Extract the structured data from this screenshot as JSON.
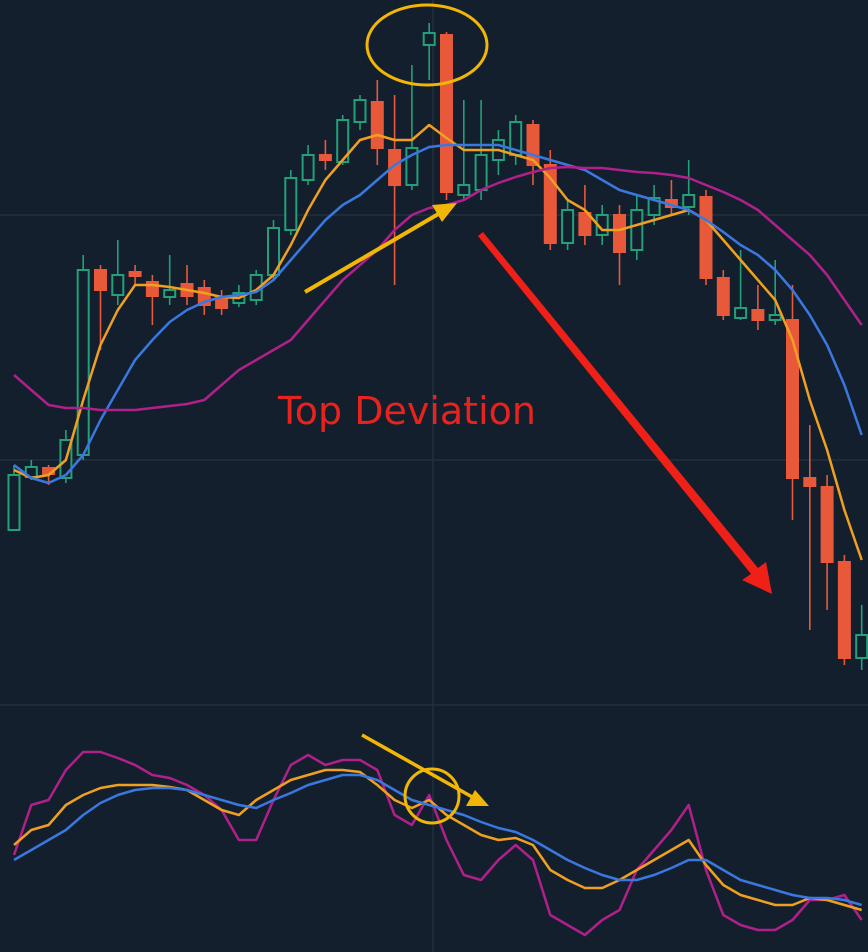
{
  "chart_data": [
    {
      "type": "candlestick",
      "annotation": "Top Deviation",
      "up_color": "#23a07a",
      "down_color": "#e8593a",
      "ylim": [
        0,
        700
      ],
      "open": [
        175,
        228,
        237,
        227,
        250,
        435,
        410,
        433,
        423,
        408,
        421,
        417,
        408,
        402,
        405,
        430,
        475,
        525,
        550,
        543,
        583,
        603,
        555,
        520,
        660,
        670,
        510,
        515,
        545,
        550,
        580,
        540,
        462,
        492,
        470,
        490,
        455,
        490,
        505,
        498,
        508,
        427,
        387,
        395,
        385,
        385,
        227,
        218,
        143,
        47
      ],
      "high": [
        240,
        245,
        240,
        275,
        450,
        440,
        465,
        440,
        430,
        450,
        440,
        425,
        415,
        420,
        435,
        485,
        535,
        560,
        565,
        590,
        610,
        625,
        610,
        640,
        682,
        673,
        605,
        605,
        575,
        590,
        585,
        555,
        505,
        520,
        500,
        500,
        510,
        520,
        525,
        545,
        515,
        435,
        455,
        420,
        445,
        420,
        280,
        230,
        150,
        100
      ],
      "low": [
        175,
        225,
        220,
        222,
        245,
        355,
        400,
        420,
        380,
        400,
        400,
        390,
        390,
        398,
        400,
        425,
        470,
        520,
        535,
        540,
        575,
        540,
        420,
        515,
        625,
        505,
        505,
        505,
        530,
        540,
        520,
        455,
        455,
        460,
        460,
        420,
        445,
        480,
        490,
        490,
        420,
        385,
        385,
        375,
        380,
        185,
        75,
        95,
        40,
        35
      ],
      "close": [
        230,
        238,
        231,
        265,
        435,
        415,
        430,
        429,
        409,
        415,
        409,
        400,
        397,
        412,
        430,
        477,
        527,
        550,
        545,
        585,
        605,
        557,
        520,
        557,
        672,
        513,
        520,
        550,
        565,
        583,
        540,
        462,
        495,
        470,
        490,
        453,
        495,
        507,
        498,
        510,
        427,
        390,
        397,
        385,
        390,
        227,
        219,
        143,
        47,
        70
      ],
      "series": [
        {
          "color": "#f0a020",
          "values": [
            235,
            227,
            230,
            245,
            305,
            360,
            395,
            420,
            420,
            418,
            415,
            412,
            408,
            407,
            415,
            430,
            460,
            495,
            525,
            545,
            565,
            570,
            565,
            565,
            580,
            567,
            555,
            555,
            555,
            550,
            545,
            527,
            505,
            495,
            475,
            475,
            480,
            485,
            490,
            495,
            485,
            465,
            445,
            425,
            405,
            365,
            305,
            255,
            195,
            145
          ]
        },
        {
          "color": "#3a78e0",
          "values": [
            240,
            227,
            222,
            230,
            250,
            285,
            315,
            345,
            365,
            383,
            395,
            403,
            408,
            410,
            413,
            425,
            445,
            465,
            485,
            500,
            510,
            525,
            540,
            550,
            558,
            560,
            560,
            560,
            560,
            555,
            550,
            545,
            540,
            535,
            525,
            515,
            510,
            505,
            500,
            495,
            485,
            473,
            460,
            450,
            435,
            415,
            390,
            360,
            320,
            270
          ]
        },
        {
          "color": "#b0208a",
          "values": [
            330,
            315,
            300,
            297,
            297,
            295,
            295,
            295,
            297,
            299,
            301,
            305,
            320,
            335,
            345,
            355,
            365,
            385,
            405,
            425,
            440,
            455,
            475,
            490,
            497,
            500,
            505,
            515,
            522,
            528,
            533,
            537,
            538,
            537,
            537,
            535,
            533,
            532,
            530,
            527,
            520,
            513,
            505,
            495,
            480,
            465,
            450,
            430,
            405,
            380
          ]
        }
      ]
    },
    {
      "type": "line",
      "ylim": [
        0,
        247
      ],
      "series": [
        {
          "color": "#b0208a",
          "values": [
            97,
            147,
            152,
            182,
            200,
            200,
            194,
            187,
            177,
            174,
            167,
            157,
            142,
            112,
            112,
            152,
            187,
            197,
            187,
            192,
            192,
            182,
            137,
            127,
            157,
            112,
            77,
            72,
            92,
            107,
            92,
            37,
            27,
            17,
            32,
            42,
            82,
            102,
            122,
            147,
            82,
            37,
            27,
            22,
            22,
            32,
            52,
            52,
            57,
            32
          ]
        },
        {
          "color": "#f0a020",
          "values": [
            107,
            122,
            127,
            147,
            157,
            164,
            167,
            167,
            167,
            165,
            162,
            152,
            142,
            137,
            152,
            162,
            172,
            177,
            182,
            182,
            180,
            167,
            152,
            144,
            152,
            137,
            127,
            117,
            112,
            114,
            107,
            82,
            72,
            64,
            64,
            72,
            82,
            92,
            102,
            112,
            87,
            67,
            57,
            52,
            47,
            47,
            54,
            52,
            47,
            42
          ]
        },
        {
          "color": "#3a78e0",
          "values": [
            92,
            102,
            112,
            122,
            137,
            149,
            157,
            162,
            164,
            164,
            162,
            157,
            152,
            147,
            144,
            152,
            159,
            167,
            172,
            177,
            177,
            172,
            162,
            152,
            147,
            142,
            137,
            130,
            124,
            120,
            112,
            102,
            92,
            84,
            77,
            72,
            72,
            77,
            84,
            92,
            92,
            82,
            72,
            67,
            62,
            57,
            54,
            54,
            52,
            47
          ]
        }
      ]
    }
  ]
}
